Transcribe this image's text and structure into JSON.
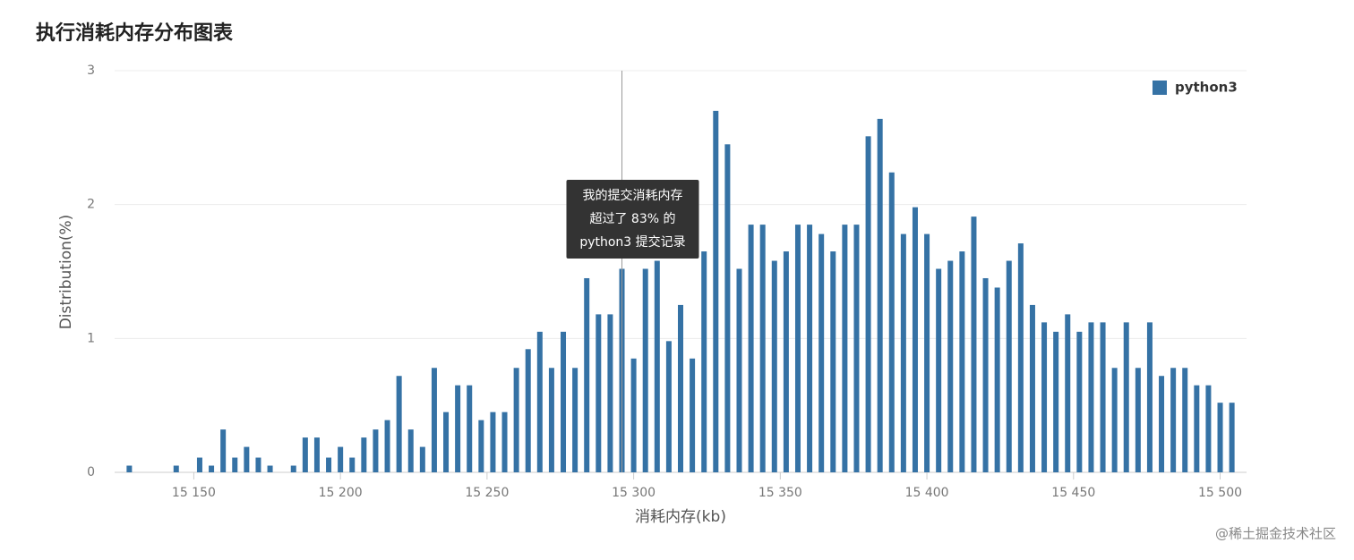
{
  "chart_data": {
    "type": "bar",
    "title": "执行消耗内存分布图表",
    "x_label": "消耗内存(kb)",
    "y_label": "Distribution(%)",
    "x": [
      15128,
      15144,
      15152,
      15156,
      15160,
      15164,
      15168,
      15172,
      15176,
      15184,
      15188,
      15192,
      15196,
      15200,
      15204,
      15208,
      15212,
      15216,
      15220,
      15224,
      15228,
      15232,
      15236,
      15240,
      15244,
      15248,
      15252,
      15256,
      15260,
      15264,
      15268,
      15272,
      15276,
      15280,
      15284,
      15288,
      15292,
      15296,
      15300,
      15304,
      15308,
      15312,
      15316,
      15320,
      15324,
      15328,
      15332,
      15336,
      15340,
      15344,
      15348,
      15352,
      15356,
      15360,
      15364,
      15368,
      15372,
      15376,
      15380,
      15384,
      15388,
      15392,
      15396,
      15400,
      15404,
      15408,
      15412,
      15416,
      15420,
      15424,
      15428,
      15432,
      15436,
      15440,
      15444,
      15448,
      15452,
      15456,
      15460,
      15464,
      15468,
      15472,
      15476,
      15480,
      15484,
      15488,
      15492,
      15496,
      15500,
      15504
    ],
    "series": [
      {
        "name": "python3",
        "color": "#3572a5",
        "values": [
          0.05,
          0.05,
          0.11,
          0.05,
          0.32,
          0.11,
          0.19,
          0.11,
          0.05,
          0.05,
          0.26,
          0.26,
          0.11,
          0.19,
          0.11,
          0.26,
          0.32,
          0.39,
          0.72,
          0.32,
          0.19,
          0.78,
          0.45,
          0.65,
          0.65,
          0.39,
          0.45,
          0.45,
          0.78,
          0.92,
          1.05,
          0.78,
          1.05,
          0.78,
          1.45,
          1.18,
          1.18,
          1.52,
          0.85,
          1.52,
          1.58,
          0.98,
          1.25,
          0.85,
          1.65,
          2.7,
          2.45,
          1.52,
          1.85,
          1.85,
          1.58,
          1.65,
          1.85,
          1.85,
          1.78,
          1.65,
          1.85,
          1.85,
          2.51,
          2.64,
          2.24,
          1.78,
          1.98,
          1.78,
          1.52,
          1.58,
          1.65,
          1.91,
          1.45,
          1.38,
          1.58,
          1.71,
          1.25,
          1.12,
          1.05,
          1.18,
          1.05,
          1.12,
          1.12,
          0.78,
          1.12,
          0.78,
          1.12,
          0.72,
          0.78,
          0.78,
          0.65,
          0.65,
          0.52,
          0.52
        ]
      }
    ],
    "xlim": [
      15123,
      15509
    ],
    "ylim": [
      0,
      3
    ],
    "xticks": [
      {
        "value": 15150,
        "label": "15 150"
      },
      {
        "value": 15200,
        "label": "15 200"
      },
      {
        "value": 15250,
        "label": "15 250"
      },
      {
        "value": 15300,
        "label": "15 300"
      },
      {
        "value": 15350,
        "label": "15 350"
      },
      {
        "value": 15400,
        "label": "15 400"
      },
      {
        "value": 15450,
        "label": "15 450"
      },
      {
        "value": 15500,
        "label": "15 500"
      }
    ],
    "yticks": [
      0,
      1,
      2,
      3
    ],
    "grid": true,
    "legend": "top-right",
    "annotation": {
      "x": 15296,
      "lines": [
        "我的提交消耗内存",
        "超过了 83% 的",
        "python3 提交记录"
      ]
    },
    "watermark": "@稀土掘金技术社区"
  }
}
